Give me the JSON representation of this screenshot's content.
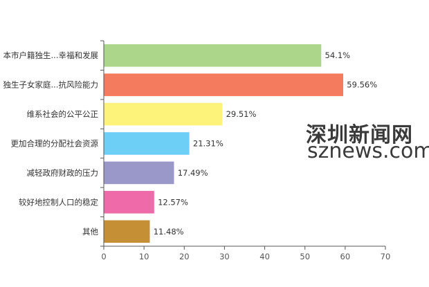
{
  "chart_data": {
    "type": "bar",
    "orientation": "horizontal",
    "categories": [
      "本市户籍独生...幸福和发展",
      "独生子女家庭...抗风险能力",
      "维系社会的公平公正",
      "更加合理的分配社会资源",
      "减轻政府财政的压力",
      "较好地控制人口的稳定",
      "其他"
    ],
    "values": [
      54.1,
      59.56,
      29.51,
      21.31,
      17.49,
      12.57,
      11.48
    ],
    "value_labels": [
      "54.1%",
      "59.56%",
      "29.51%",
      "21.31%",
      "17.49%",
      "12.57%",
      "11.48%"
    ],
    "colors": [
      "#acd78a",
      "#f47b5e",
      "#fdf27a",
      "#6dcff6",
      "#9a97c9",
      "#ef6aa8",
      "#c48f35"
    ],
    "xlim": [
      0,
      70
    ],
    "xticks": [
      "0",
      "10",
      "20",
      "30",
      "40",
      "50",
      "60",
      "70"
    ],
    "grid": false
  },
  "watermark": {
    "line1": "深圳新闻网",
    "line2": "sznews.com"
  }
}
